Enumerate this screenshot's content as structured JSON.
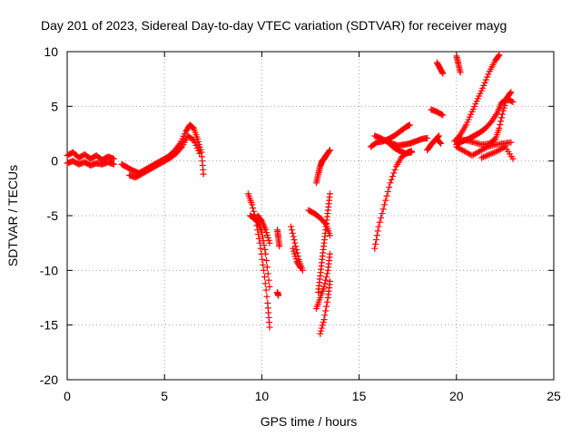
{
  "chart_data": {
    "type": "scatter",
    "title": "Day 201 of 2023, Sidereal Day-to-day VTEC variation (SDTVAR) for receiver mayg",
    "xlabel": "GPS time / hours",
    "ylabel": "SDTVAR / TECUs",
    "xlim": [
      0,
      25
    ],
    "ylim": [
      -20,
      10
    ],
    "xticks": [
      "0",
      "5",
      "10",
      "15",
      "20",
      "25"
    ],
    "yticks": [
      "10",
      "5",
      "0",
      "-5",
      "-10",
      "-15",
      "-20"
    ],
    "grid": true,
    "marker": "+",
    "color": "#ff0000",
    "series": [
      {
        "name": "s1",
        "x": [
          0.0,
          0.3,
          0.6,
          0.9,
          1.2,
          1.5,
          1.8,
          2.1,
          2.4
        ],
        "y": [
          0.5,
          0.8,
          0.3,
          0.6,
          0.2,
          0.5,
          0.1,
          0.4,
          0.2
        ]
      },
      {
        "name": "s2",
        "x": [
          0.0,
          0.3,
          0.6,
          0.9,
          1.2,
          1.5,
          1.8,
          2.1,
          2.4
        ],
        "y": [
          -0.2,
          0.0,
          -0.3,
          -0.1,
          -0.4,
          -0.2,
          -0.3,
          -0.1,
          -0.3
        ]
      },
      {
        "name": "s3",
        "x": [
          2.8,
          3.1,
          3.4,
          3.7,
          4.0,
          4.3,
          4.6,
          4.9,
          5.2,
          5.5,
          5.8,
          6.1,
          6.3,
          6.5,
          6.7,
          6.9,
          7.0
        ],
        "y": [
          -0.3,
          -0.6,
          -0.9,
          -1.1,
          -0.8,
          -0.5,
          -0.2,
          0.1,
          0.4,
          0.9,
          1.6,
          2.7,
          3.3,
          3.0,
          2.0,
          0.8,
          -1.2
        ]
      },
      {
        "name": "s4",
        "x": [
          3.2,
          3.5,
          3.8,
          4.1,
          4.4,
          4.7,
          5.0,
          5.3,
          5.6,
          5.9,
          6.2,
          6.5,
          6.8
        ],
        "y": [
          -1.3,
          -1.5,
          -1.2,
          -0.9,
          -0.6,
          -0.3,
          0.0,
          0.3,
          0.7,
          1.3,
          2.3,
          1.9,
          0.7
        ]
      },
      {
        "name": "s5",
        "x": [
          9.3,
          9.5,
          9.7,
          9.9,
          10.1,
          10.3,
          10.4
        ],
        "y": [
          -3.0,
          -4.0,
          -5.5,
          -7.5,
          -10.0,
          -13.0,
          -15.2
        ]
      },
      {
        "name": "s6",
        "x": [
          9.4,
          9.6,
          9.8,
          10.0,
          10.2,
          10.4
        ],
        "y": [
          -5.0,
          -5.2,
          -5.6,
          -6.5,
          -8.5,
          -11.5
        ]
      },
      {
        "name": "s7",
        "x": [
          9.8,
          10.0,
          10.2,
          10.4
        ],
        "y": [
          -5.0,
          -5.5,
          -6.3,
          -7.5
        ]
      },
      {
        "name": "s8",
        "x": [
          10.8,
          10.85,
          10.9
        ],
        "y": [
          -6.3,
          -7.0,
          -7.8
        ]
      },
      {
        "name": "s9",
        "x": [
          10.8,
          10.85
        ],
        "y": [
          -12.0,
          -12.3
        ]
      },
      {
        "name": "s10",
        "x": [
          11.5,
          11.7,
          11.9,
          12.1
        ],
        "y": [
          -6.0,
          -7.5,
          -9.0,
          -10.0
        ]
      },
      {
        "name": "s11",
        "x": [
          11.6,
          11.8,
          12.0
        ],
        "y": [
          -8.0,
          -9.2,
          -9.8
        ]
      },
      {
        "name": "s12",
        "x": [
          12.4,
          12.7,
          13.0,
          13.3,
          13.5
        ],
        "y": [
          -4.5,
          -4.8,
          -5.2,
          -5.8,
          -6.8
        ]
      },
      {
        "name": "s13",
        "x": [
          12.8,
          12.9,
          13.0,
          13.1,
          13.2,
          13.3,
          13.5
        ],
        "y": [
          -2.0,
          -1.2,
          -0.5,
          0.0,
          0.2,
          0.5,
          1.0
        ]
      },
      {
        "name": "s14",
        "x": [
          12.9,
          13.0,
          13.1,
          13.2,
          13.3,
          13.4,
          13.5
        ],
        "y": [
          -12.0,
          -10.5,
          -9.0,
          -7.5,
          -6.0,
          -4.5,
          -3.0
        ]
      },
      {
        "name": "s15",
        "x": [
          12.8,
          13.0,
          13.2,
          13.4,
          13.5
        ],
        "y": [
          -13.5,
          -12.5,
          -11.5,
          -10.0,
          -8.5
        ]
      },
      {
        "name": "s16",
        "x": [
          13.0,
          13.2,
          13.4,
          13.5
        ],
        "y": [
          -15.8,
          -14.5,
          -12.5,
          -11.0
        ]
      },
      {
        "name": "s17",
        "x": [
          15.8,
          16.0,
          16.3,
          16.6,
          16.9,
          17.2,
          17.5,
          17.7
        ],
        "y": [
          -8.0,
          -6.0,
          -4.0,
          -2.0,
          -0.5,
          0.4,
          0.8,
          0.9
        ]
      },
      {
        "name": "s18",
        "x": [
          15.6,
          15.9,
          16.2,
          16.5,
          16.8,
          17.1,
          17.4,
          17.6
        ],
        "y": [
          1.3,
          1.7,
          1.8,
          2.0,
          2.3,
          2.7,
          3.1,
          3.3
        ]
      },
      {
        "name": "s19",
        "x": [
          15.8,
          16.1,
          16.4,
          16.7,
          17.0,
          17.3,
          17.6,
          17.9,
          18.2,
          18.5
        ],
        "y": [
          2.3,
          2.1,
          1.8,
          1.6,
          1.4,
          1.5,
          1.6,
          1.8,
          2.0,
          2.1
        ]
      },
      {
        "name": "s20",
        "x": [
          16.5,
          16.8,
          17.1,
          17.4,
          17.7
        ],
        "y": [
          1.7,
          1.2,
          0.9,
          0.7,
          0.8
        ]
      },
      {
        "name": "s21",
        "x": [
          18.5,
          18.7,
          18.9,
          19.1
        ],
        "y": [
          1.0,
          1.5,
          1.9,
          2.3
        ]
      },
      {
        "name": "s22",
        "x": [
          18.7,
          19.0,
          19.3
        ],
        "y": [
          4.7,
          4.5,
          4.2
        ]
      },
      {
        "name": "s23",
        "x": [
          19.0,
          19.15,
          19.3
        ],
        "y": [
          9.0,
          8.5,
          8.0
        ]
      },
      {
        "name": "s24",
        "x": [
          19.0,
          19.2
        ],
        "y": [
          2.0,
          1.6
        ]
      },
      {
        "name": "s25",
        "x": [
          20.0,
          20.1,
          20.2
        ],
        "y": [
          9.6,
          8.9,
          8.1
        ]
      },
      {
        "name": "s26",
        "x": [
          19.9,
          20.2,
          20.5,
          20.8,
          21.1,
          21.4,
          21.7,
          22.0,
          22.2
        ],
        "y": [
          1.8,
          2.4,
          3.3,
          4.5,
          5.7,
          6.9,
          8.2,
          9.2,
          9.7
        ]
      },
      {
        "name": "s27",
        "x": [
          20.0,
          20.3,
          20.6,
          20.9,
          21.2,
          21.5,
          21.8,
          22.1,
          22.3,
          22.6,
          22.9
        ],
        "y": [
          1.5,
          1.8,
          2.0,
          2.3,
          2.6,
          3.0,
          3.6,
          4.4,
          5.3,
          5.7,
          5.4
        ]
      },
      {
        "name": "s28",
        "x": [
          20.1,
          20.5,
          20.9,
          21.3,
          21.7,
          22.0,
          22.2,
          22.4,
          22.6,
          22.8
        ],
        "y": [
          2.0,
          1.9,
          1.7,
          1.5,
          1.6,
          2.0,
          3.0,
          4.6,
          5.8,
          6.3
        ]
      },
      {
        "name": "s29",
        "x": [
          20.0,
          20.4,
          20.8,
          21.2,
          21.6,
          22.0,
          22.4,
          22.8
        ],
        "y": [
          1.3,
          0.9,
          0.5,
          0.9,
          1.3,
          1.5,
          1.6,
          1.7
        ]
      },
      {
        "name": "s30",
        "x": [
          21.3,
          21.7,
          22.1,
          22.5,
          22.9
        ],
        "y": [
          0.3,
          0.6,
          0.9,
          1.3,
          0.2
        ]
      }
    ]
  }
}
